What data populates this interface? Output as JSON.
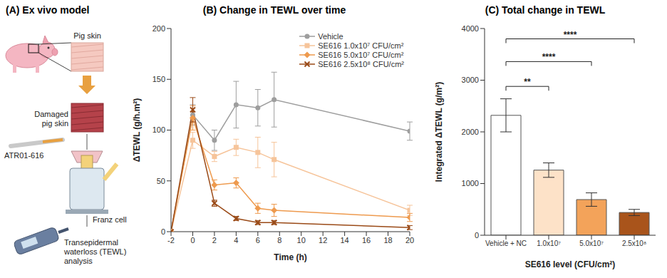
{
  "chart_data": [
    {
      "type": "line",
      "title": "(B) Change in TEWL over time",
      "x_label": "Time (h)",
      "y_label": "ΔTEWL (g/h.m²)",
      "x": [
        -2,
        0,
        2,
        4,
        6,
        7.5,
        20
      ],
      "xlim": [
        -2,
        20
      ],
      "xticks": [
        -2,
        0,
        2,
        4,
        6,
        8,
        10,
        12,
        14,
        16,
        18,
        20
      ],
      "ylim": [
        0,
        200
      ],
      "yticks": [
        0,
        50,
        100,
        150,
        200
      ],
      "grid": false,
      "legend": "upper right",
      "series": [
        {
          "name": "Vehicle",
          "color": "#9e9e9e",
          "marker": "circle",
          "values": [
            0,
            115,
            90,
            125,
            122,
            130,
            99
          ],
          "errors": [
            0,
            10,
            10,
            23,
            18,
            27,
            9
          ]
        },
        {
          "name": "SE616 1.0x10⁷ CFU/cm²",
          "color": "#f6c49a",
          "marker": "square",
          "values": [
            0,
            90,
            74,
            83,
            78,
            71,
            21
          ],
          "errors": [
            0,
            8,
            5,
            8,
            15,
            17,
            5
          ]
        },
        {
          "name": "SE616 5.0x10⁷ CFU/cm²",
          "color": "#ee9a4e",
          "marker": "diamond",
          "values": [
            0,
            112,
            46,
            48,
            23,
            21,
            14
          ],
          "errors": [
            0,
            12,
            5,
            5,
            5,
            6,
            4
          ]
        },
        {
          "name": "SE616 2.5x10⁸ CFU/cm²",
          "color": "#9a4a17",
          "marker": "x",
          "values": [
            0,
            120,
            28,
            13,
            9,
            9,
            4
          ],
          "errors": [
            0,
            12,
            3,
            2,
            2,
            2,
            2
          ]
        }
      ]
    },
    {
      "type": "bar",
      "title": "(C) Total change in TEWL",
      "x_label": "SE616 level (CFU/cm²)",
      "y_label": "Integrated ΔTEWL (g/m²)",
      "categories": [
        "Vehicle + NC",
        "1.0x10⁷",
        "5.0x10⁷",
        "2.5x10⁸"
      ],
      "values": [
        2320,
        1260,
        690,
        440
      ],
      "errors": [
        320,
        140,
        130,
        60
      ],
      "colors": [
        "#ffffff",
        "#fde2c8",
        "#f3a35a",
        "#a9541b"
      ],
      "ylim": [
        0,
        4000
      ],
      "yticks": [
        0,
        1000,
        2000,
        3000,
        4000
      ],
      "grid": false,
      "annotations": [
        {
          "from": "Vehicle + NC",
          "to": "1.0x10⁷",
          "label": "**"
        },
        {
          "from": "Vehicle + NC",
          "to": "5.0x10⁷",
          "label": "****"
        },
        {
          "from": "Vehicle + NC",
          "to": "2.5x10⁸",
          "label": "****"
        }
      ]
    }
  ],
  "diagram": {
    "title": "(A) Ex vivo model",
    "nodes": [
      {
        "label": "Pig skin"
      },
      {
        "label": "Damaged pig skin"
      },
      {
        "label": "ATR01-616"
      },
      {
        "label": "Franz cell"
      },
      {
        "label": "Transepidermal waterloss (TEWL) analysis"
      }
    ]
  }
}
